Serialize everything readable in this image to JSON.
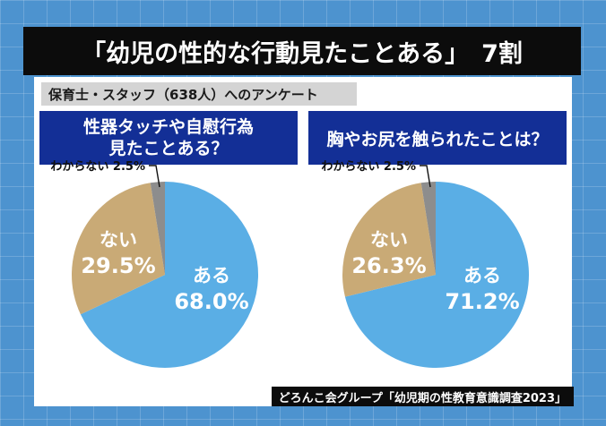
{
  "title": {
    "main": "「幼児の性的な行動見たことある」",
    "ratio": "7割"
  },
  "survey_label": "保育士・スタッフ（638人）へのアンケート",
  "source": "どろんこ会グループ「幼児期の性教育意識調査2023」",
  "colors": {
    "background": "#4d93cf",
    "yes": "#5aaee5",
    "no": "#c9aa76",
    "unknown": "#8d8d8d",
    "question_box": "#132f96",
    "title_bar": "#0c0c0c"
  },
  "chart_data": [
    {
      "type": "pie",
      "title": "性器タッチや自慰行為\n見たことある？",
      "slices": [
        {
          "label": "ある",
          "value": 68.0,
          "display": "68.0%"
        },
        {
          "label": "ない",
          "value": 29.5,
          "display": "29.5%"
        },
        {
          "label": "わからない",
          "value": 2.5,
          "display": "2.5%"
        }
      ]
    },
    {
      "type": "pie",
      "title": "胸やお尻を触られたことは？",
      "slices": [
        {
          "label": "ある",
          "value": 71.2,
          "display": "71.2%"
        },
        {
          "label": "ない",
          "value": 26.3,
          "display": "26.3%"
        },
        {
          "label": "わからない",
          "value": 2.5,
          "display": "2.5%"
        }
      ]
    }
  ]
}
